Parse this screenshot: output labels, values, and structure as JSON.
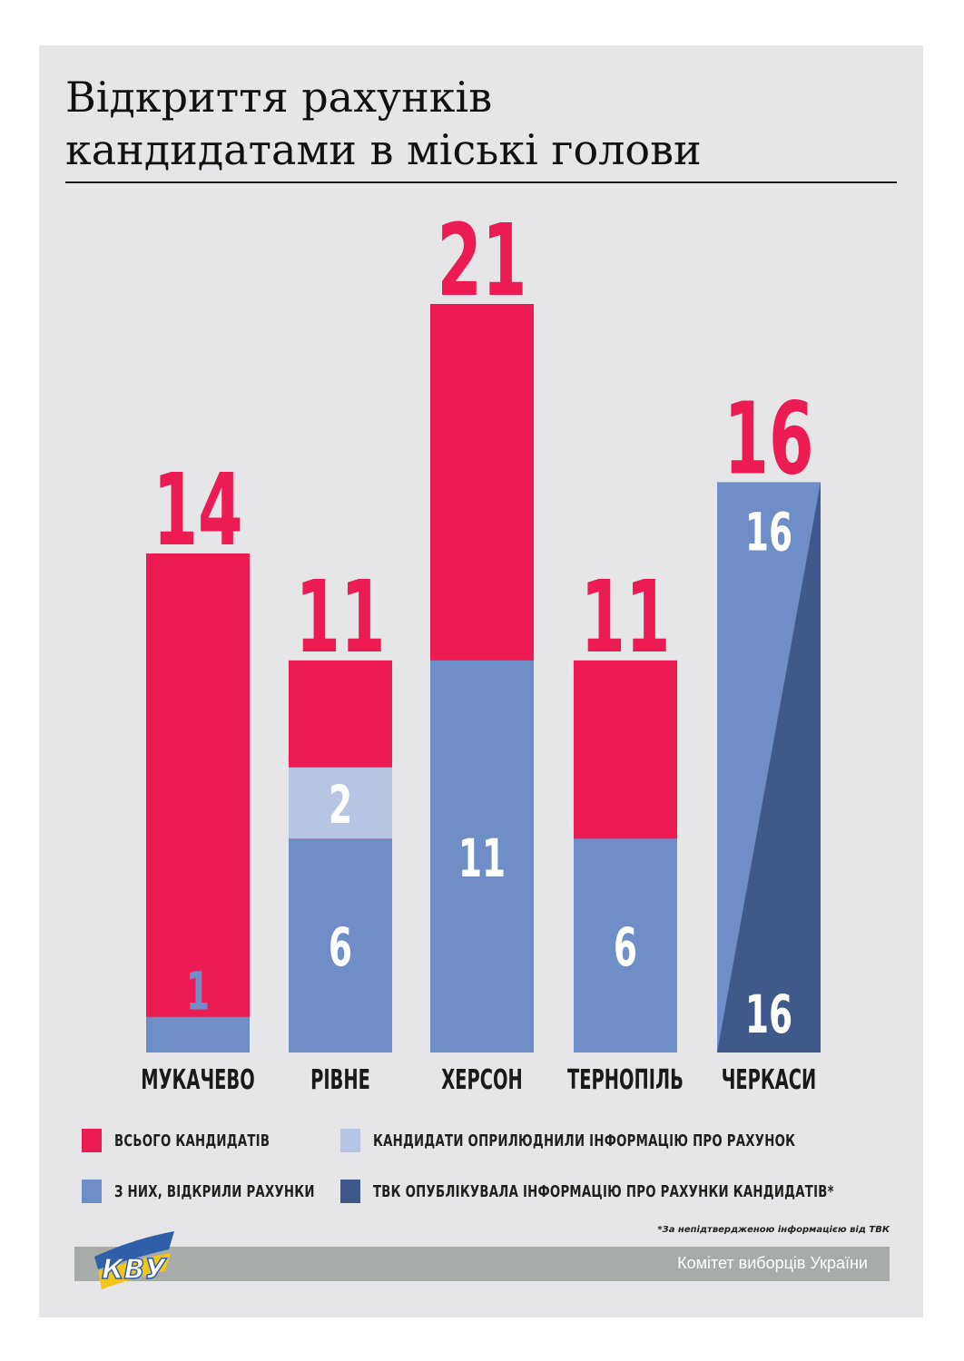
{
  "title": [
    "Відкриття рахунків",
    "кандидатами в міські голови"
  ],
  "colors": {
    "total": "#ec1b54",
    "opened": "#6f8ec7",
    "published_by_candidates": "#b8c4e3",
    "published_by_tvk": "#41598a"
  },
  "chart_data": {
    "type": "bar",
    "categories": [
      "МУКАЧЕВО",
      "РІВНЕ",
      "ХЕРСОН",
      "ТЕРНОПІЛЬ",
      "ЧЕРКАСИ"
    ],
    "series": [
      {
        "name": "ВСЬОГО КАНДИДАТІВ",
        "values": [
          14,
          11,
          21,
          11,
          16
        ]
      },
      {
        "name": "З НИХ, ВІДКРИЛИ РАХУНКИ",
        "values": [
          1,
          6,
          11,
          6,
          16
        ]
      },
      {
        "name": "КАНДИДАТИ ОПРИЛЮДНИЛИ ІНФОРМАЦІЮ ПРО РАХУНОК",
        "values": [
          null,
          2,
          null,
          null,
          null
        ]
      },
      {
        "name": "ТВК ОПУБЛІКУВАЛА ІНФОРМАЦІЮ ПРО РАХУНКИ КАНДИДАТІВ*",
        "values": [
          null,
          null,
          null,
          null,
          16
        ]
      }
    ],
    "total_labels": [
      "14",
      "11",
      "21",
      "11",
      "16"
    ],
    "opened_labels": [
      "1",
      "6",
      "11",
      "6",
      "16"
    ],
    "published_labels": [
      "",
      "2",
      "",
      "",
      ""
    ],
    "tvk_labels": [
      "",
      "",
      "",
      "",
      "16"
    ],
    "ylim": [
      0,
      21
    ],
    "legend": "bottom",
    "grid": false
  },
  "legend": [
    {
      "label": "ВСЬОГО КАНДИДАТІВ",
      "color": "#ec1b54"
    },
    {
      "label": "КАНДИДАТИ ОПРИЛЮДНИЛИ ІНФОРМАЦІЮ ПРО РАХУНОК",
      "color": "#b8c4e3"
    },
    {
      "label": "З НИХ, ВІДКРИЛИ РАХУНКИ",
      "color": "#6f8ec7"
    },
    {
      "label": "ТВК ОПУБЛІКУВАЛА ІНФОРМАЦІЮ ПРО РАХУНКИ КАНДИДАТІВ*",
      "color": "#41598a"
    }
  ],
  "footnote": "*За непідтвердженою інформацією від ТВК",
  "footer": {
    "org": "Комітет виборців України",
    "logo_text": "КВУ"
  }
}
